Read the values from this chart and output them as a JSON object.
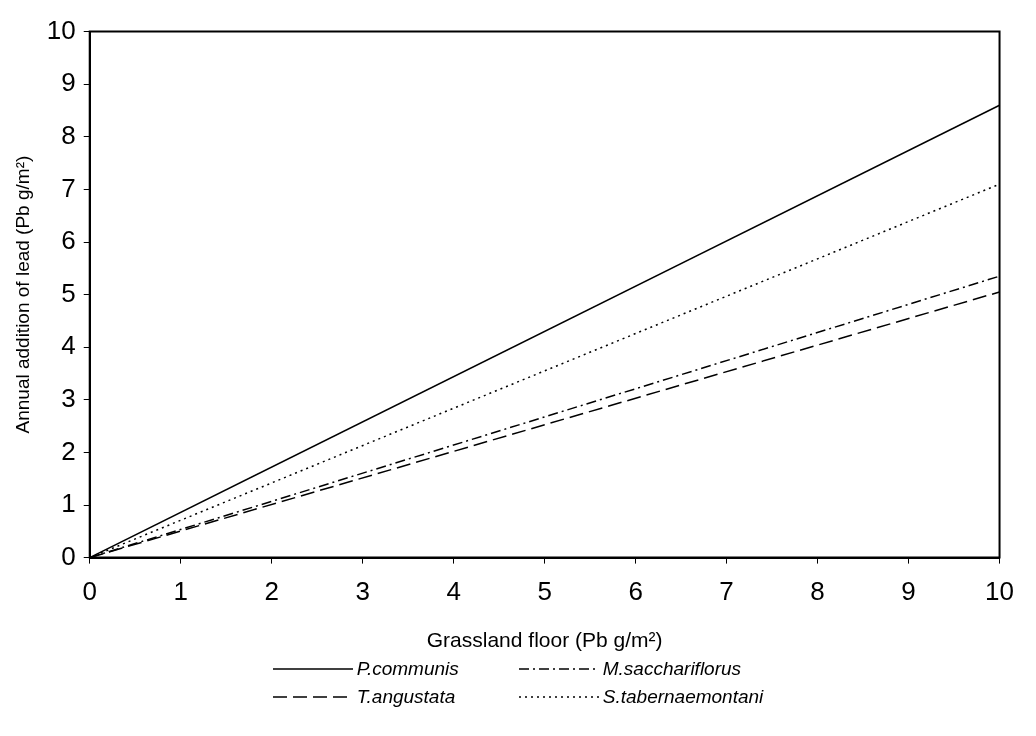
{
  "chart_data": {
    "type": "line",
    "xlabel": "Grassland floor (Pb g/m²)",
    "ylabel": "Annual addition of lead (Pb g/m²)",
    "x": [
      0,
      10
    ],
    "xlim": [
      0,
      10
    ],
    "xticks": [
      0,
      1,
      2,
      3,
      4,
      5,
      6,
      7,
      8,
      9,
      10
    ],
    "ylim": [
      0,
      10
    ],
    "yticks": [
      0,
      1,
      2,
      3,
      4,
      5,
      6,
      7,
      8,
      9,
      10
    ],
    "grid": false,
    "legend": "bottom",
    "marker": "none",
    "series": [
      {
        "name": "P.communis",
        "color": "#000000",
        "line_style": "solid",
        "values": [
          0,
          8.6
        ]
      },
      {
        "name": "M.sacchariflorus",
        "color": "#000000",
        "line_style": "dashdot",
        "values": [
          0,
          5.35
        ]
      },
      {
        "name": "T.angustata",
        "color": "#000000",
        "line_style": "dashed",
        "values": [
          0,
          5.05
        ]
      },
      {
        "name": "S.tabernaemontani",
        "color": "#000000",
        "line_style": "dotted",
        "values": [
          0,
          7.1
        ]
      }
    ]
  }
}
